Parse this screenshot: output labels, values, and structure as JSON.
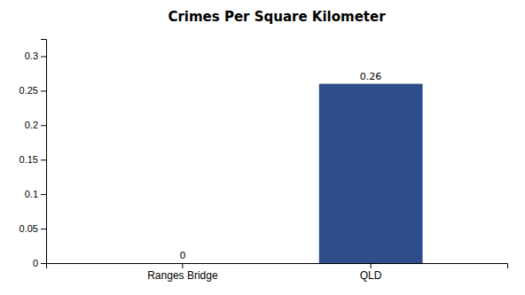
{
  "chart_data": {
    "type": "bar",
    "title": "Crimes Per Square Kilometer",
    "categories": [
      "Ranges Bridge",
      "QLD"
    ],
    "values": [
      0,
      0.26
    ],
    "color": "#2d4e8a",
    "ylim": [
      0,
      0.325
    ],
    "yticks": [
      0,
      0.05,
      0.1,
      0.15,
      0.2,
      0.25,
      0.3
    ],
    "grid": false,
    "data_labels": true
  }
}
